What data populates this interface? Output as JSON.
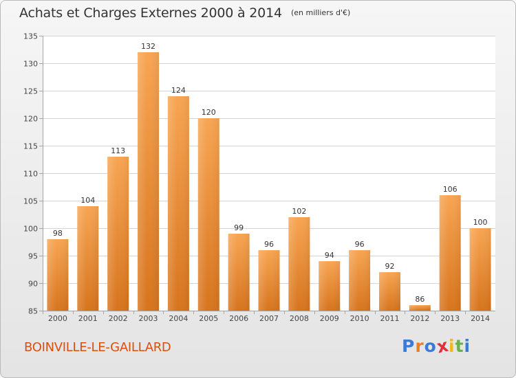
{
  "header": {
    "title": "Achats et Charges Externes 2000 à 2014",
    "subtitle": "(en milliers d'€)"
  },
  "footer": {
    "town": "BOINVILLE-LE-GAILLARD",
    "logo_letters": [
      "P",
      "r",
      "o",
      "x",
      "i",
      "t",
      "i"
    ],
    "logo_colors": [
      "#3a7bd5",
      "#e8802a",
      "#3a7bd5",
      "#e0303a",
      "#f2b81b",
      "#6ab04c",
      "#3a7bd5"
    ]
  },
  "chart_data": {
    "type": "bar",
    "title": "Achats et Charges Externes 2000 à 2014",
    "subtitle": "(en milliers d'€)",
    "categories": [
      "2000",
      "2001",
      "2002",
      "2003",
      "2004",
      "2005",
      "2006",
      "2007",
      "2008",
      "2009",
      "2010",
      "2011",
      "2012",
      "2013",
      "2014"
    ],
    "values": [
      98,
      104,
      113,
      132,
      124,
      120,
      99,
      96,
      102,
      94,
      96,
      92,
      86,
      106,
      100
    ],
    "ylim": [
      85,
      135
    ],
    "yticks": [
      85,
      90,
      95,
      100,
      105,
      110,
      115,
      120,
      125,
      130,
      135
    ],
    "grid": true,
    "colors": {
      "bar_top": "#f7a552",
      "bar_bottom": "#d7741d",
      "grid": "#d4d4d4",
      "axis": "#a5a5a5"
    }
  }
}
